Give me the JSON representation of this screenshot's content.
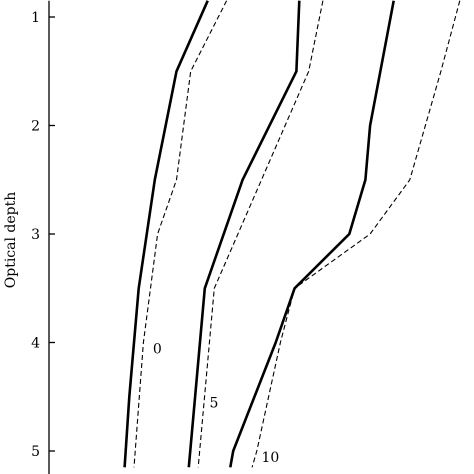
{
  "chart_data": {
    "type": "line",
    "ylabel": "Optical depth",
    "y_axis": {
      "reversed": true,
      "range": [
        0.85,
        5.15
      ],
      "ticks": [
        1,
        2,
        3,
        4,
        5
      ]
    },
    "x_axis": {
      "shown": false
    },
    "grid": false,
    "series": [
      {
        "name": "0",
        "style": "solid",
        "points": [
          [
            0.85,
            1.68
          ],
          [
            1.5,
            1.35
          ],
          [
            2.5,
            1.12
          ],
          [
            3.5,
            0.95
          ],
          [
            4.5,
            0.85
          ],
          [
            5.15,
            0.8
          ]
        ]
      },
      {
        "name": "0",
        "style": "dashed",
        "points": [
          [
            0.85,
            1.88
          ],
          [
            1.5,
            1.5
          ],
          [
            2.5,
            1.35
          ],
          [
            3.0,
            1.15
          ],
          [
            4.0,
            1.0
          ],
          [
            5.15,
            0.9
          ]
        ]
      },
      {
        "name": "5",
        "style": "solid",
        "points": [
          [
            0.85,
            2.65
          ],
          [
            1.5,
            2.62
          ],
          [
            2.5,
            2.05
          ],
          [
            3.5,
            1.65
          ],
          [
            5.15,
            1.48
          ]
        ]
      },
      {
        "name": "5",
        "style": "dashed",
        "points": [
          [
            0.85,
            2.9
          ],
          [
            1.5,
            2.75
          ],
          [
            2.5,
            2.25
          ],
          [
            3.5,
            1.75
          ],
          [
            5.15,
            1.58
          ]
        ]
      },
      {
        "name": "10",
        "style": "solid",
        "points": [
          [
            0.85,
            3.65
          ],
          [
            2.0,
            3.4
          ],
          [
            2.5,
            3.35
          ],
          [
            3.0,
            3.18
          ],
          [
            3.5,
            2.6
          ],
          [
            4.0,
            2.4
          ],
          [
            5.0,
            1.95
          ],
          [
            5.15,
            1.92
          ]
        ]
      },
      {
        "name": "10",
        "style": "dashed",
        "points": [
          [
            0.85,
            4.35
          ],
          [
            1.5,
            4.15
          ],
          [
            2.5,
            3.82
          ],
          [
            3.0,
            3.4
          ],
          [
            3.5,
            2.6
          ],
          [
            4.0,
            2.45
          ],
          [
            5.0,
            2.2
          ],
          [
            5.15,
            2.15
          ]
        ]
      }
    ],
    "curve_labels": [
      {
        "text": "0",
        "x": 1.1,
        "y": 4.1
      },
      {
        "text": "5",
        "x": 1.7,
        "y": 4.6
      },
      {
        "text": "10",
        "x": 2.25,
        "y": 5.1
      }
    ]
  }
}
